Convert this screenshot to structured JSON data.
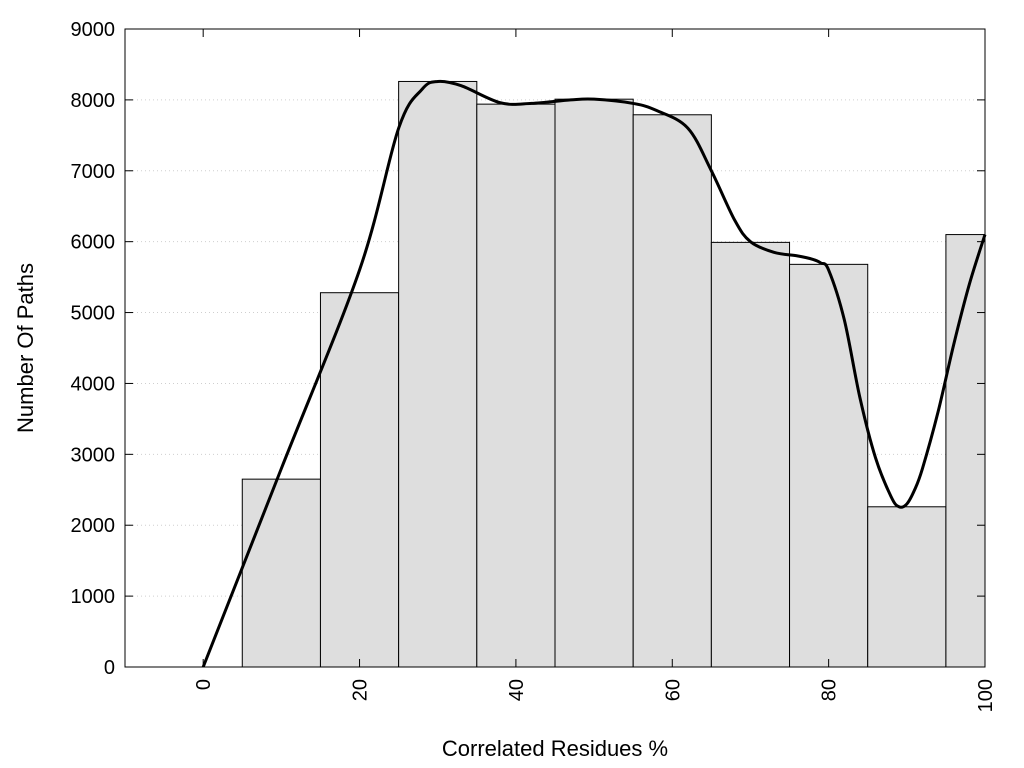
{
  "chart_data": {
    "type": "bar",
    "title": "",
    "xlabel": "Correlated Residues %",
    "ylabel": "Number Of Paths",
    "xlim": [
      -10,
      100
    ],
    "ylim": [
      0,
      9000
    ],
    "x_ticks": [
      0,
      20,
      40,
      60,
      80,
      100
    ],
    "y_ticks": [
      0,
      1000,
      2000,
      3000,
      4000,
      5000,
      6000,
      7000,
      8000,
      9000
    ],
    "bars": [
      {
        "x": 10,
        "value": 2650
      },
      {
        "x": 20,
        "value": 5280
      },
      {
        "x": 30,
        "value": 8260
      },
      {
        "x": 40,
        "value": 7940
      },
      {
        "x": 50,
        "value": 8010
      },
      {
        "x": 60,
        "value": 7790
      },
      {
        "x": 70,
        "value": 5990
      },
      {
        "x": 80,
        "value": 5680
      },
      {
        "x": 90,
        "value": 2260
      },
      {
        "x": 100,
        "value": 6100
      }
    ],
    "bin_width": 10,
    "curve": {
      "x": [
        0,
        10,
        20,
        25,
        28,
        30,
        33,
        38,
        42,
        47,
        50,
        55,
        58,
        62,
        65,
        68,
        70,
        73,
        76,
        78,
        79,
        80,
        82,
        84,
        86,
        88,
        89,
        90,
        91,
        92,
        94,
        96,
        98,
        100
      ],
      "y": [
        0,
        2800,
        5600,
        7600,
        8150,
        8260,
        8200,
        7960,
        7950,
        8000,
        8010,
        7950,
        7850,
        7600,
        7000,
        6300,
        6000,
        5850,
        5800,
        5750,
        5700,
        5600,
        4900,
        3800,
        2950,
        2400,
        2260,
        2300,
        2500,
        2800,
        3600,
        4550,
        5400,
        6100
      ]
    },
    "grid": {
      "y": true,
      "x": false
    },
    "colors": {
      "bar_fill": "#dedede",
      "bar_stroke": "#000000",
      "curve": "#000000",
      "grid": "#cfcfcf"
    }
  }
}
